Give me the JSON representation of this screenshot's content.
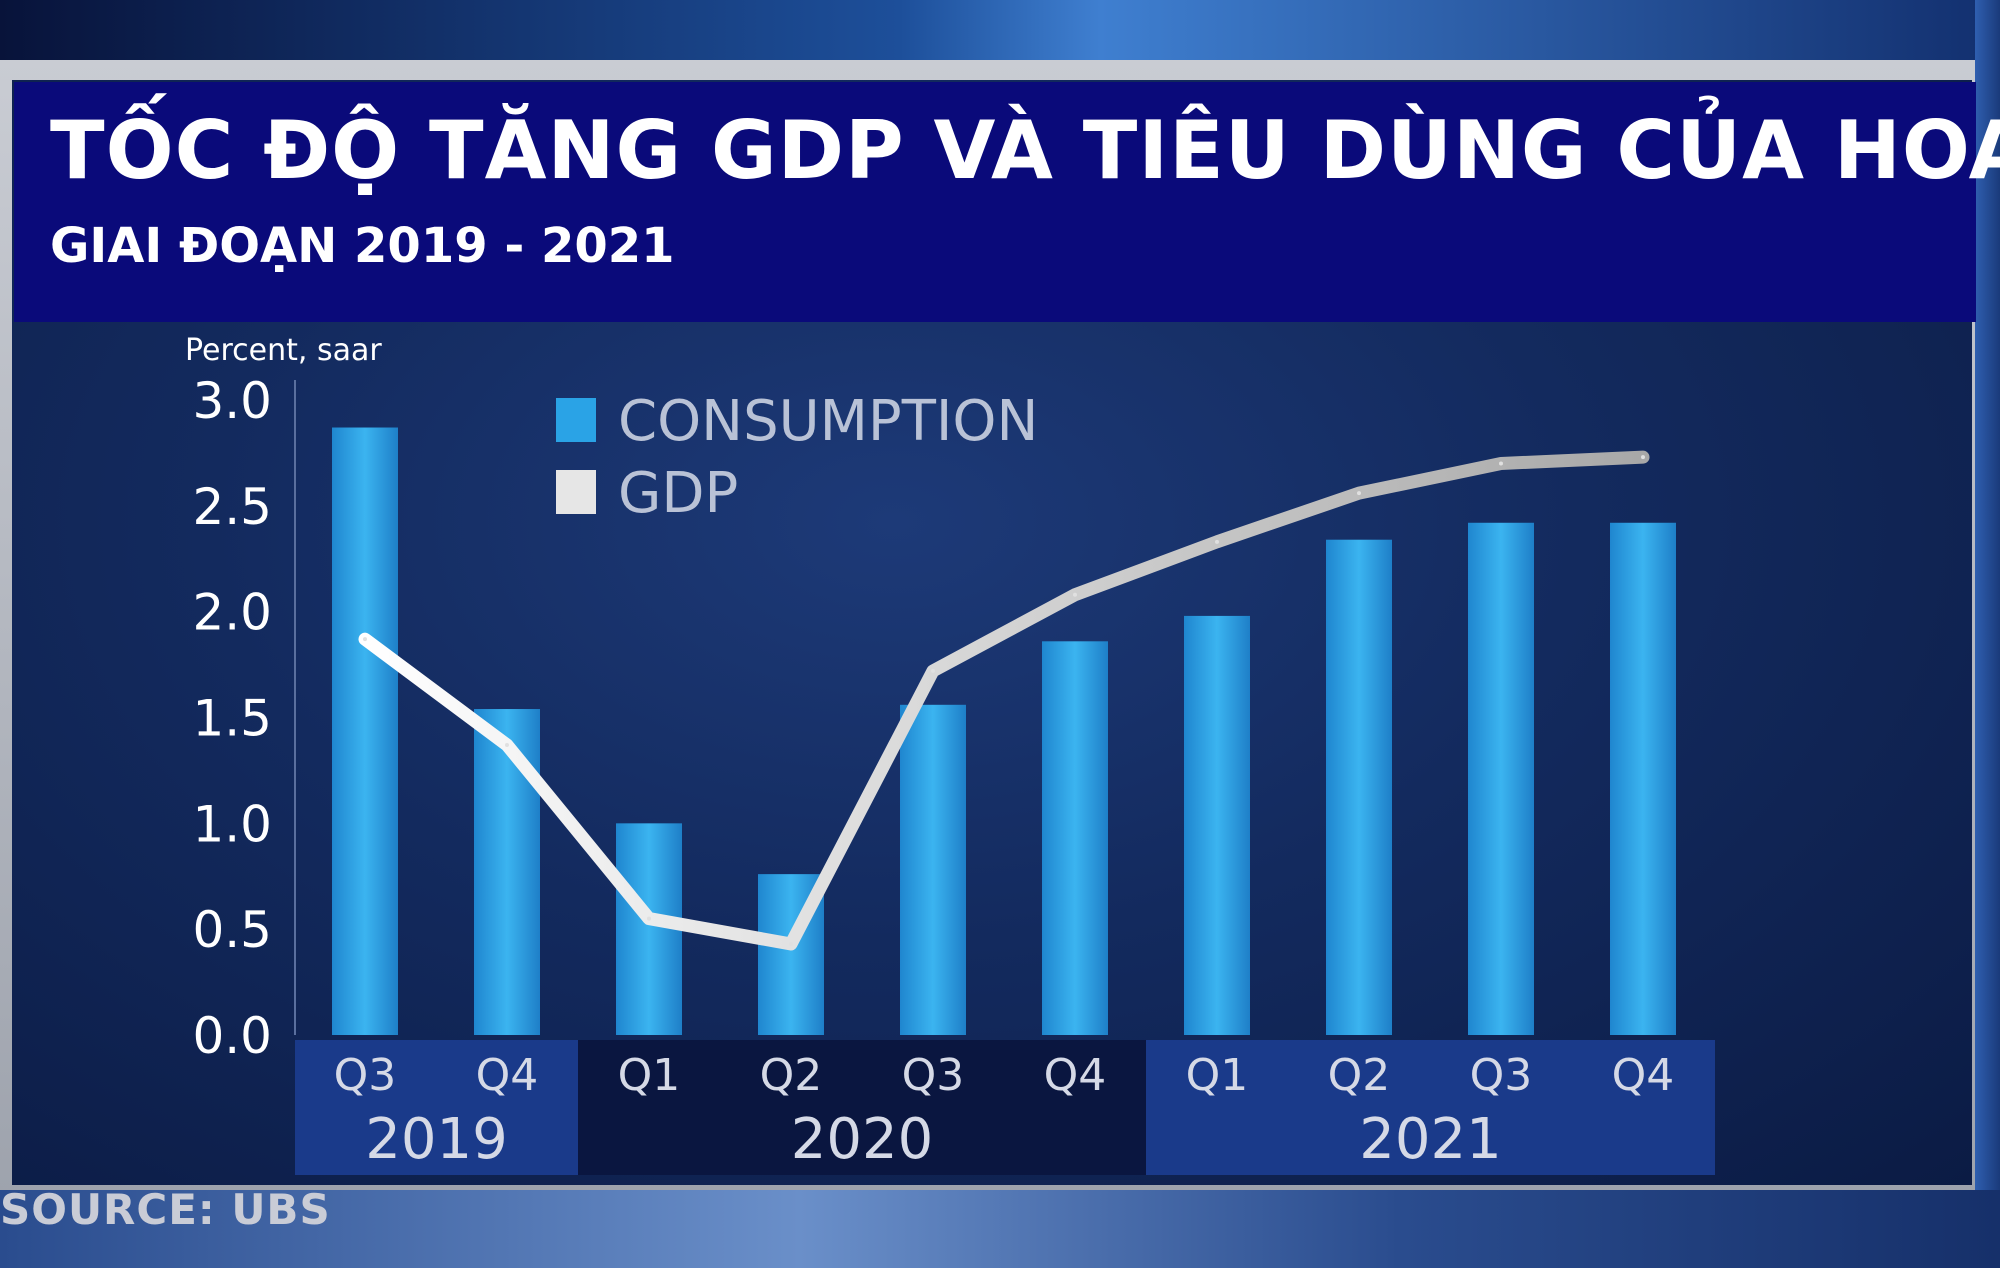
{
  "header": {
    "title": "TỐC ĐỘ TĂNG GDP VÀ TIÊU DÙNG CỦA HOA KỲ",
    "subtitle": "GIAI ĐOẠN 2019 - 2021"
  },
  "footer": {
    "source": "SOURCE: UBS"
  },
  "colors": {
    "title_band": "#0a0a7a",
    "consumption_bar": "#2aa3e6",
    "gdp_line": "#d8d8d8",
    "axis_text": "#ffffff"
  },
  "chart_data": {
    "type": "bar",
    "ylabel": "Percent, saar",
    "ylim": [
      0,
      3.0
    ],
    "yticks": [
      "3.0",
      "2.5",
      "2.0",
      "1.5",
      "1.0",
      "0.5",
      "0.0"
    ],
    "categories": [
      "Q3",
      "Q4",
      "Q1",
      "Q2",
      "Q3",
      "Q4",
      "Q1",
      "Q2",
      "Q3",
      "Q4"
    ],
    "year_groups": [
      {
        "label": "2019",
        "start": 0,
        "end": 1
      },
      {
        "label": "2020",
        "start": 2,
        "end": 5
      },
      {
        "label": "2021",
        "start": 6,
        "end": 9
      }
    ],
    "series": [
      {
        "name": "CONSUMPTION",
        "kind": "bar",
        "values": [
          2.87,
          1.54,
          1.0,
          0.76,
          1.56,
          1.86,
          1.98,
          2.34,
          2.42,
          2.42
        ]
      },
      {
        "name": "GDP",
        "kind": "line",
        "values": [
          1.87,
          1.37,
          0.55,
          0.43,
          1.72,
          2.08,
          2.33,
          2.56,
          2.7,
          2.73
        ]
      }
    ],
    "legend_position": "top-center",
    "grid": false
  }
}
